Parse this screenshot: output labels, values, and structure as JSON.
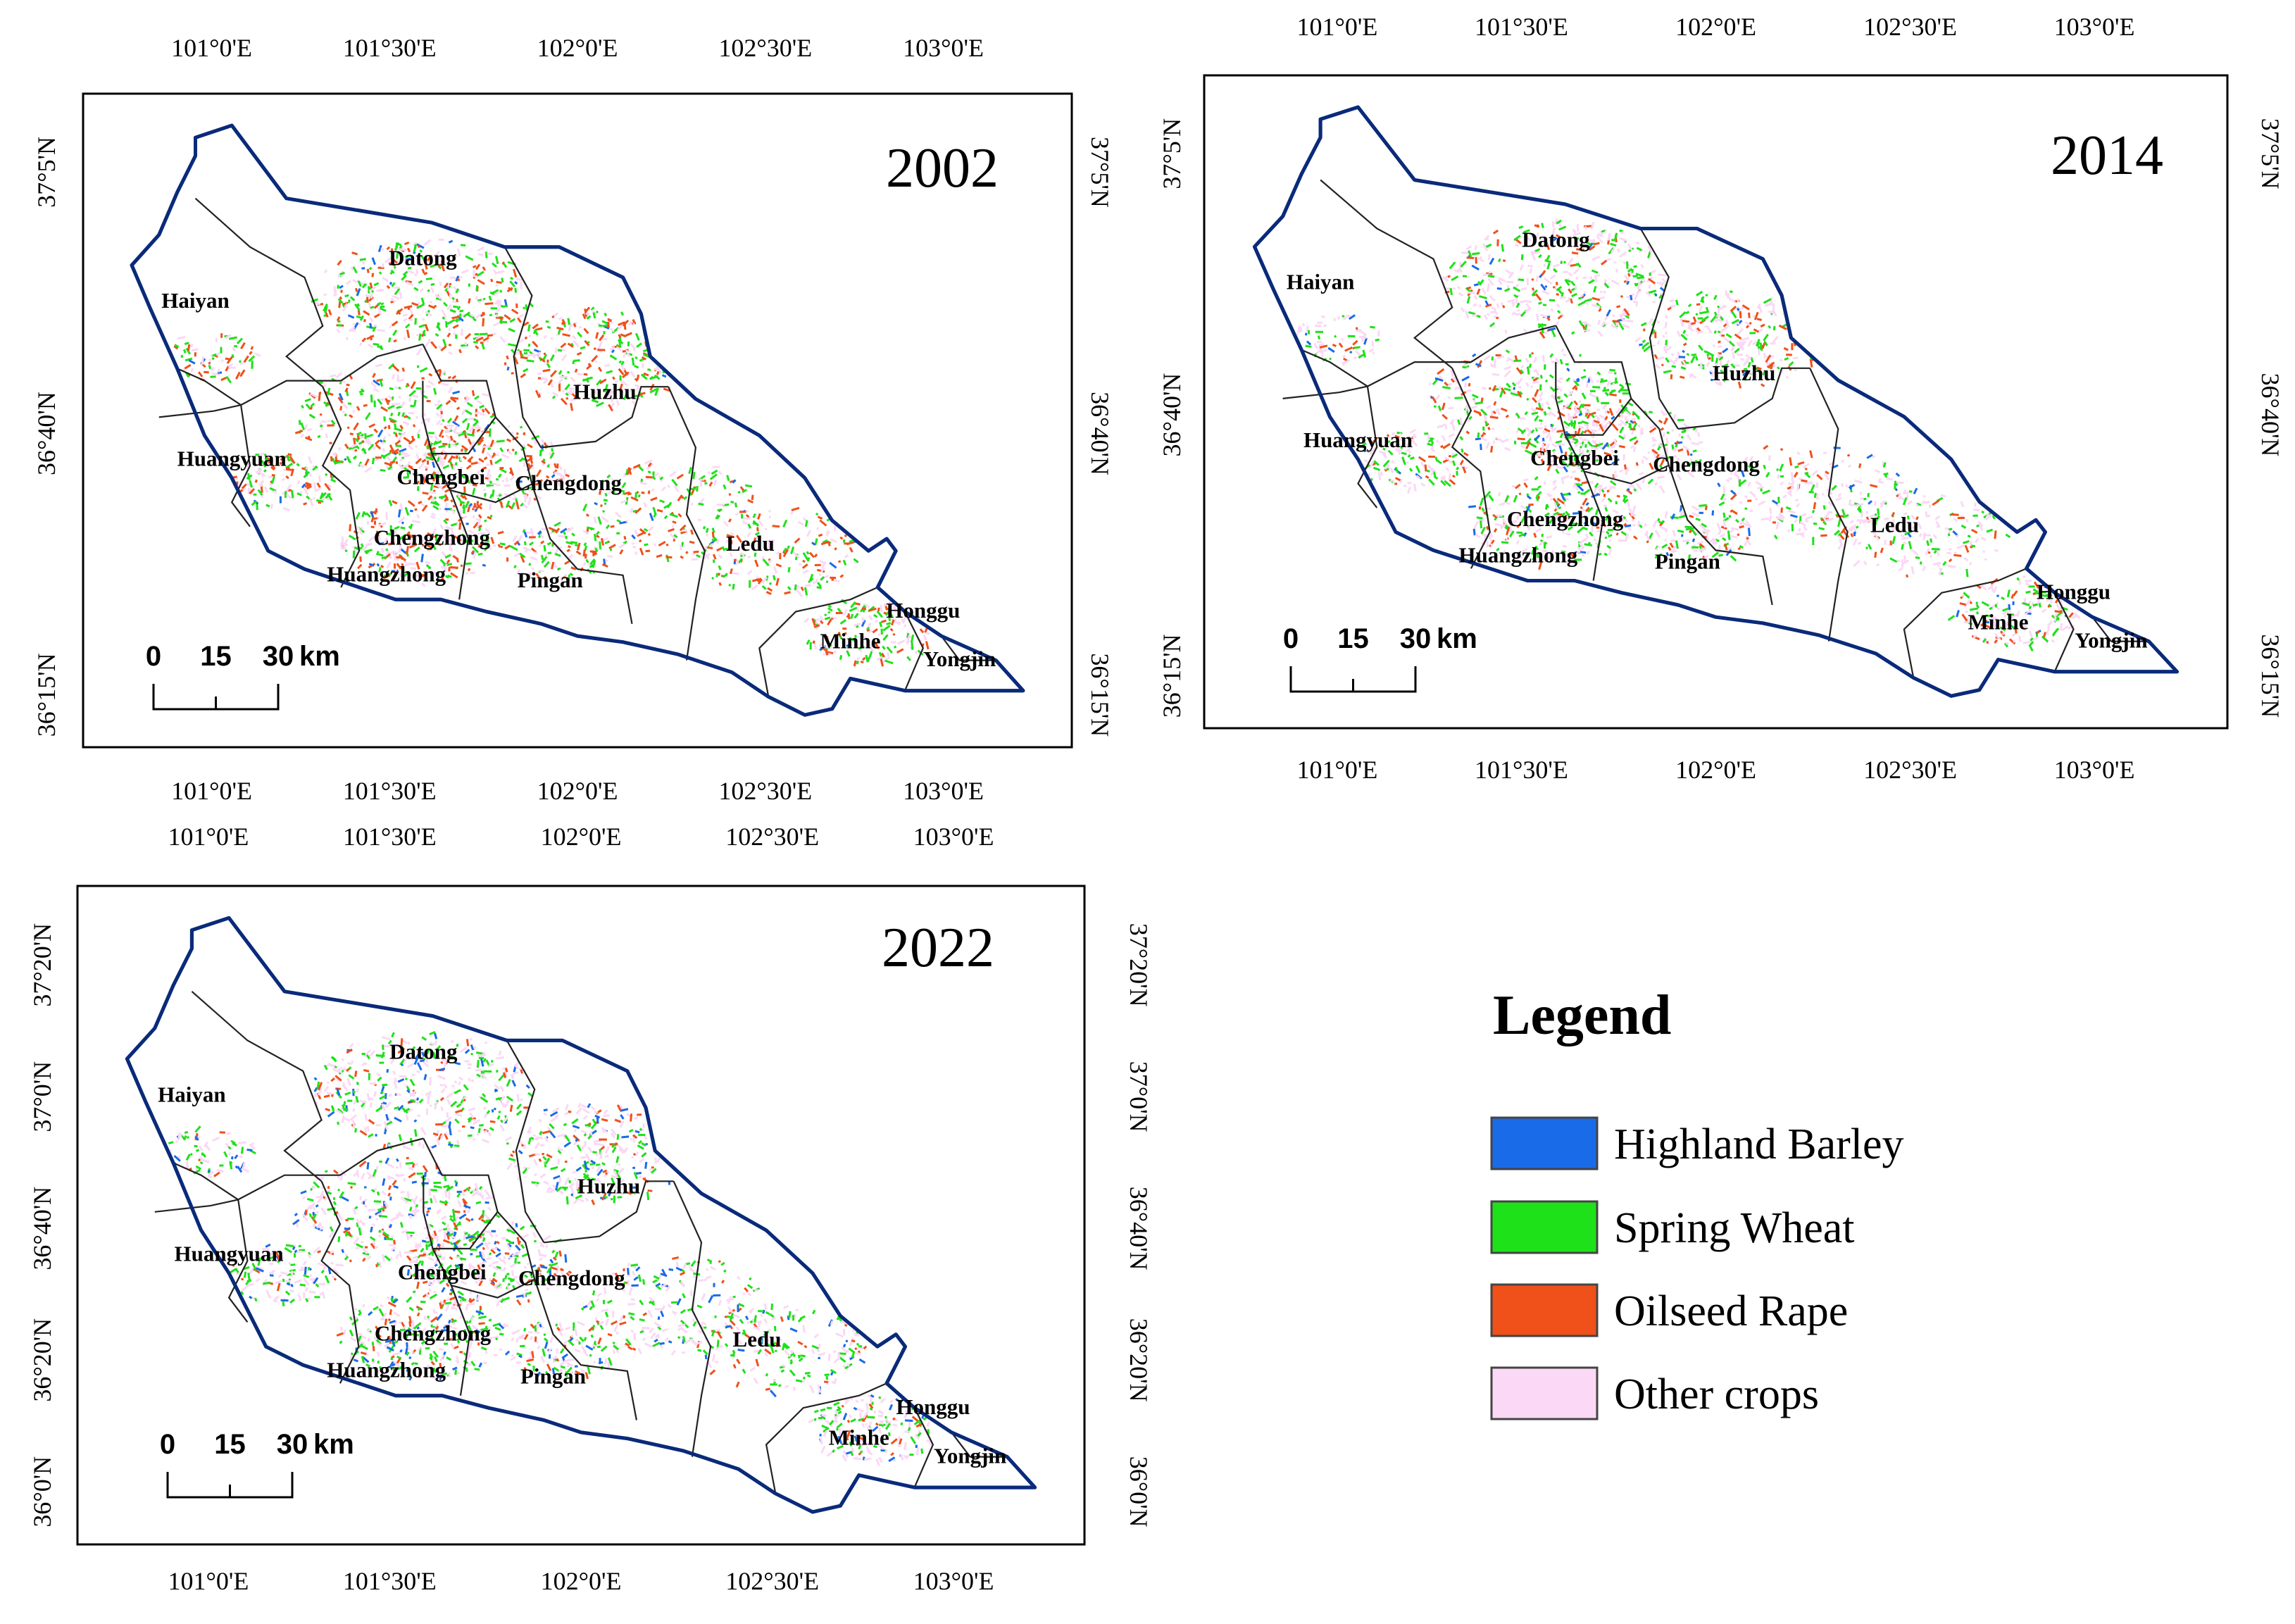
{
  "colors": {
    "highland_barley": "#1a6be8",
    "spring_wheat": "#1fe11a",
    "oilseed_rape": "#f0501a",
    "other_crops": "#fbd8f5",
    "outline": "#0a2a7a"
  },
  "maps": [
    {
      "year": "2002",
      "lon_labels": [
        "101°0'E",
        "101°30'E",
        "102°0'E",
        "102°30'E",
        "103°0'E"
      ],
      "lat_labels": [
        "37°5'N",
        "36°40'N",
        "36°15'N"
      ],
      "counties": [
        "Datong",
        "Haiyan",
        "Huzhu",
        "Huangyuan",
        "Chengbei",
        "Chengdong",
        "Chengzhong",
        "Ledu",
        "Huangzhong",
        "Pingan",
        "Minhe",
        "Honggu",
        "Yongjin"
      ],
      "scale": {
        "ticks": [
          "0",
          "15",
          "30"
        ],
        "unit": "km"
      },
      "crops": {
        "highland_barley": 0.03,
        "spring_wheat": 0.32,
        "oilseed_rape": 0.3,
        "other_crops": 0.35
      }
    },
    {
      "year": "2014",
      "lon_labels": [
        "101°0'E",
        "101°30'E",
        "102°0'E",
        "102°30'E",
        "103°0'E"
      ],
      "lat_labels": [
        "37°5'N",
        "36°40'N",
        "36°15'N"
      ],
      "counties": [
        "Datong",
        "Haiyan",
        "Huzhu",
        "Huangyuan",
        "Chengbei",
        "Chengdong",
        "Chengzhong",
        "Ledu",
        "Huangzhong",
        "Pingan",
        "Minhe",
        "Honggu",
        "Yongjin"
      ],
      "scale": {
        "ticks": [
          "0",
          "15",
          "30"
        ],
        "unit": "km"
      },
      "crops": {
        "highland_barley": 0.05,
        "spring_wheat": 0.3,
        "oilseed_rape": 0.15,
        "other_crops": 0.5
      }
    },
    {
      "year": "2022",
      "lon_labels": [
        "101°0'E",
        "101°30'E",
        "102°0'E",
        "102°30'E",
        "103°0'E"
      ],
      "lat_labels": [
        "37°20'N",
        "37°0'N",
        "36°40'N",
        "36°20'N",
        "36°0'N"
      ],
      "counties": [
        "Datong",
        "Haiyan",
        "Huzhu",
        "Huangyuan",
        "Chengbei",
        "Chengdong",
        "Chengzhong",
        "Ledu",
        "Huangzhong",
        "Pingan",
        "Minhe",
        "Honggu",
        "Yongjin"
      ],
      "scale": {
        "ticks": [
          "0",
          "15",
          "30"
        ],
        "unit": "km"
      },
      "crops": {
        "highland_barley": 0.12,
        "spring_wheat": 0.3,
        "oilseed_rape": 0.13,
        "other_crops": 0.45
      }
    }
  ],
  "legend": {
    "title": "Legend",
    "items": [
      {
        "label": "Highland Barley",
        "color_key": "highland_barley"
      },
      {
        "label": "Spring Wheat",
        "color_key": "spring_wheat"
      },
      {
        "label": "Oilseed Rape",
        "color_key": "oilseed_rape"
      },
      {
        "label": "Other crops",
        "color_key": "other_crops"
      }
    ]
  }
}
